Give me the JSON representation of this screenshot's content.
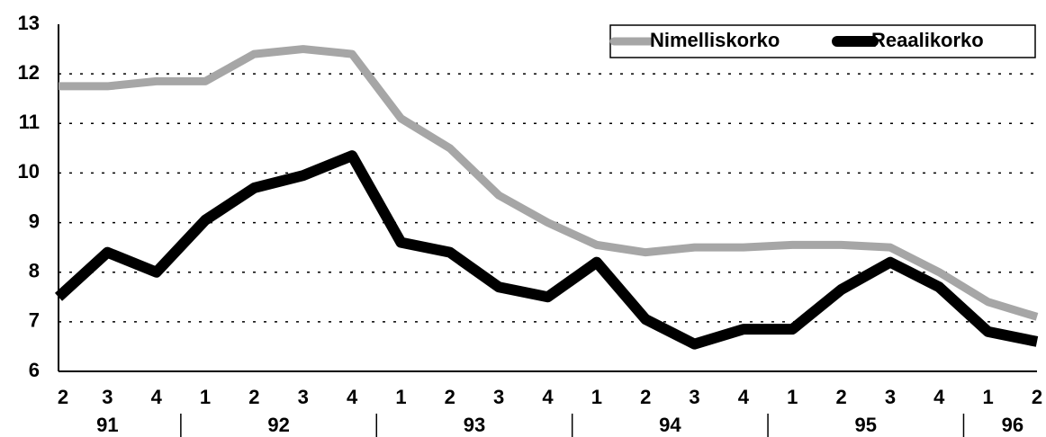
{
  "chart_data": {
    "type": "line",
    "categories": [
      "2",
      "3",
      "4",
      "1",
      "2",
      "3",
      "4",
      "1",
      "2",
      "3",
      "4",
      "1",
      "2",
      "3",
      "4",
      "1",
      "2",
      "3",
      "4",
      "1",
      "2"
    ],
    "groups": [
      "91",
      "92",
      "93",
      "94",
      "95",
      "96"
    ],
    "series": [
      {
        "name": "Nimelliskorko",
        "color": "#a6a6a6",
        "values": [
          11.75,
          11.75,
          11.85,
          11.85,
          12.4,
          12.5,
          12.4,
          11.1,
          10.5,
          9.55,
          9.0,
          8.55,
          8.4,
          8.5,
          8.5,
          8.55,
          8.55,
          8.5,
          8.0,
          7.4,
          7.1
        ]
      },
      {
        "name": "Reaalikorko",
        "color": "#000000",
        "values": [
          7.5,
          8.4,
          8.0,
          9.05,
          9.7,
          9.95,
          10.35,
          8.6,
          8.4,
          7.7,
          7.5,
          8.2,
          7.05,
          6.55,
          6.85,
          6.85,
          7.65,
          8.2,
          7.7,
          6.8,
          6.6
        ]
      }
    ],
    "ylim": [
      6,
      13
    ],
    "yticks": [
      6,
      7,
      8,
      9,
      10,
      11,
      12,
      13
    ],
    "grid": true,
    "legend": "top-right"
  }
}
